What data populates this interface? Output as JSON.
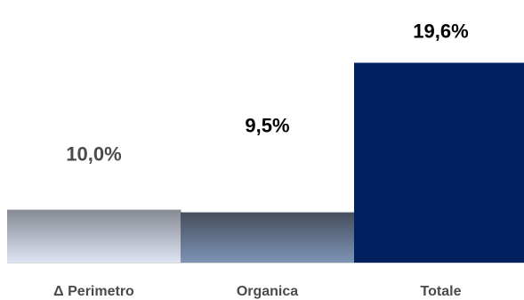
{
  "chart_data": {
    "type": "bar",
    "categories": [
      "Δ Perimetro",
      "Organica",
      "Totale"
    ],
    "values": [
      10.0,
      9.5,
      19.6
    ],
    "value_labels": [
      "10,0%",
      "9,5%",
      "19,6%"
    ],
    "colors": {
      "bar_1_top": "#868a93",
      "bar_1_bottom": "#dfe4f4",
      "bar_2_top": "#454e5d",
      "bar_2_bottom": "#7e94b6",
      "bar_3": "#002060",
      "baseline": "#d9d9d9",
      "label_dark": "#000000",
      "label_grey": "#4a4a4a"
    },
    "title": "",
    "xlabel": "",
    "ylabel": "",
    "ylim": [
      0,
      20
    ],
    "grid": false,
    "legend": "none"
  }
}
